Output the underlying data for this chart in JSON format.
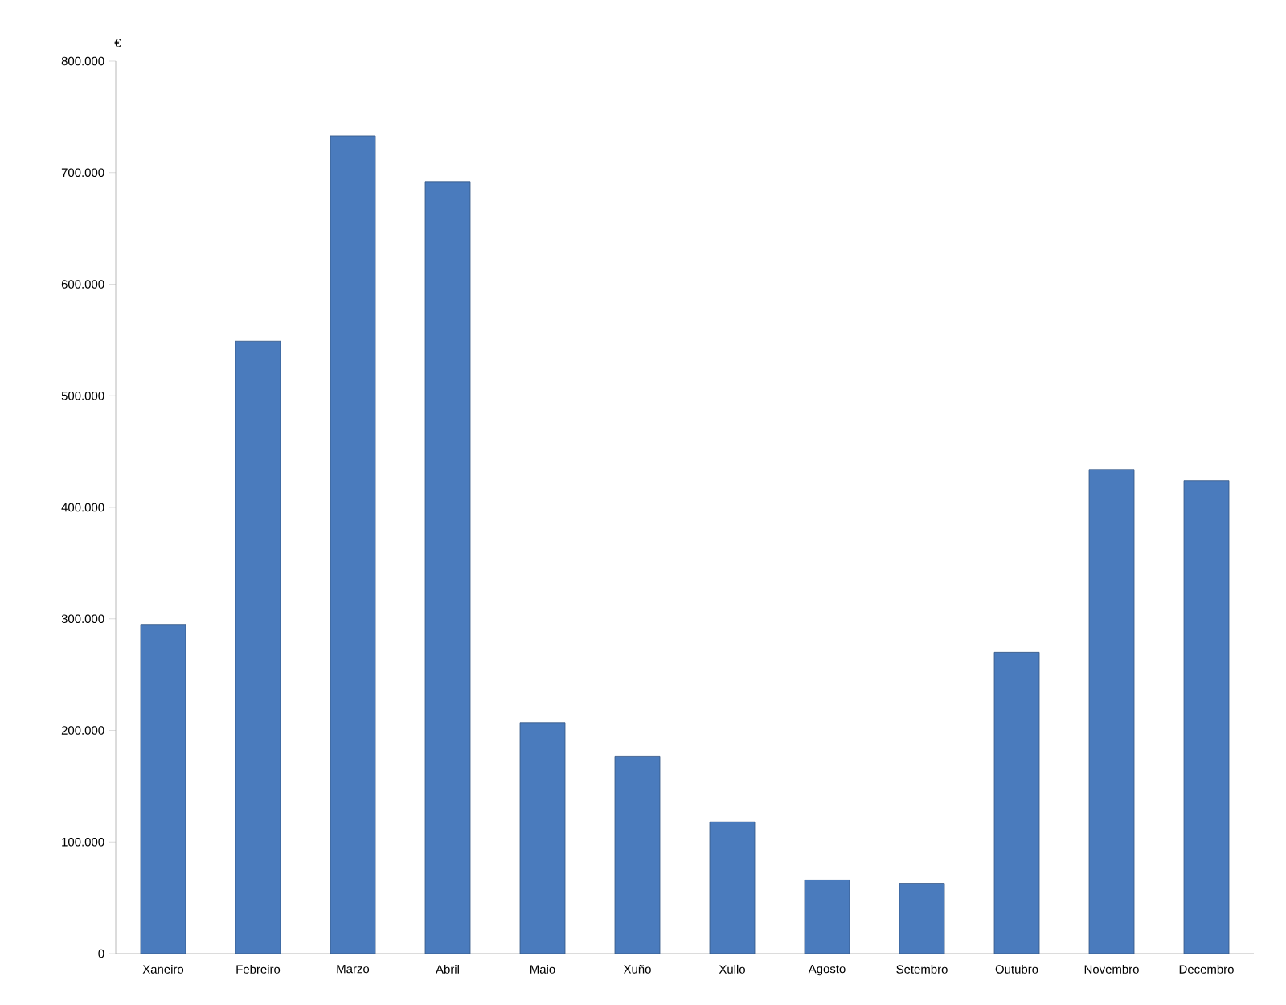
{
  "chart_data": {
    "type": "bar",
    "ylabel": "€",
    "categories": [
      "Xaneiro",
      "Febreiro",
      "Marzo",
      "Abril",
      "Maio",
      "Xuño",
      "Xullo",
      "Agosto",
      "Setembro",
      "Outubro",
      "Novembro",
      "Decembro"
    ],
    "values": [
      295000,
      549000,
      733000,
      692000,
      207000,
      177000,
      118000,
      66000,
      63000,
      270000,
      434000,
      424000
    ],
    "color": "#4a7bbd",
    "ylim": [
      0,
      800000
    ],
    "yticks": [
      {
        "value": 0,
        "label": "0"
      },
      {
        "value": 100000,
        "label": "100.000"
      },
      {
        "value": 200000,
        "label": "200.000"
      },
      {
        "value": 300000,
        "label": "300.000"
      },
      {
        "value": 400000,
        "label": "400.000"
      },
      {
        "value": 500000,
        "label": "500.000"
      },
      {
        "value": 600000,
        "label": "600.000"
      },
      {
        "value": 700000,
        "label": "700.000"
      },
      {
        "value": 800000,
        "label": "800.000"
      }
    ],
    "grid": false
  }
}
